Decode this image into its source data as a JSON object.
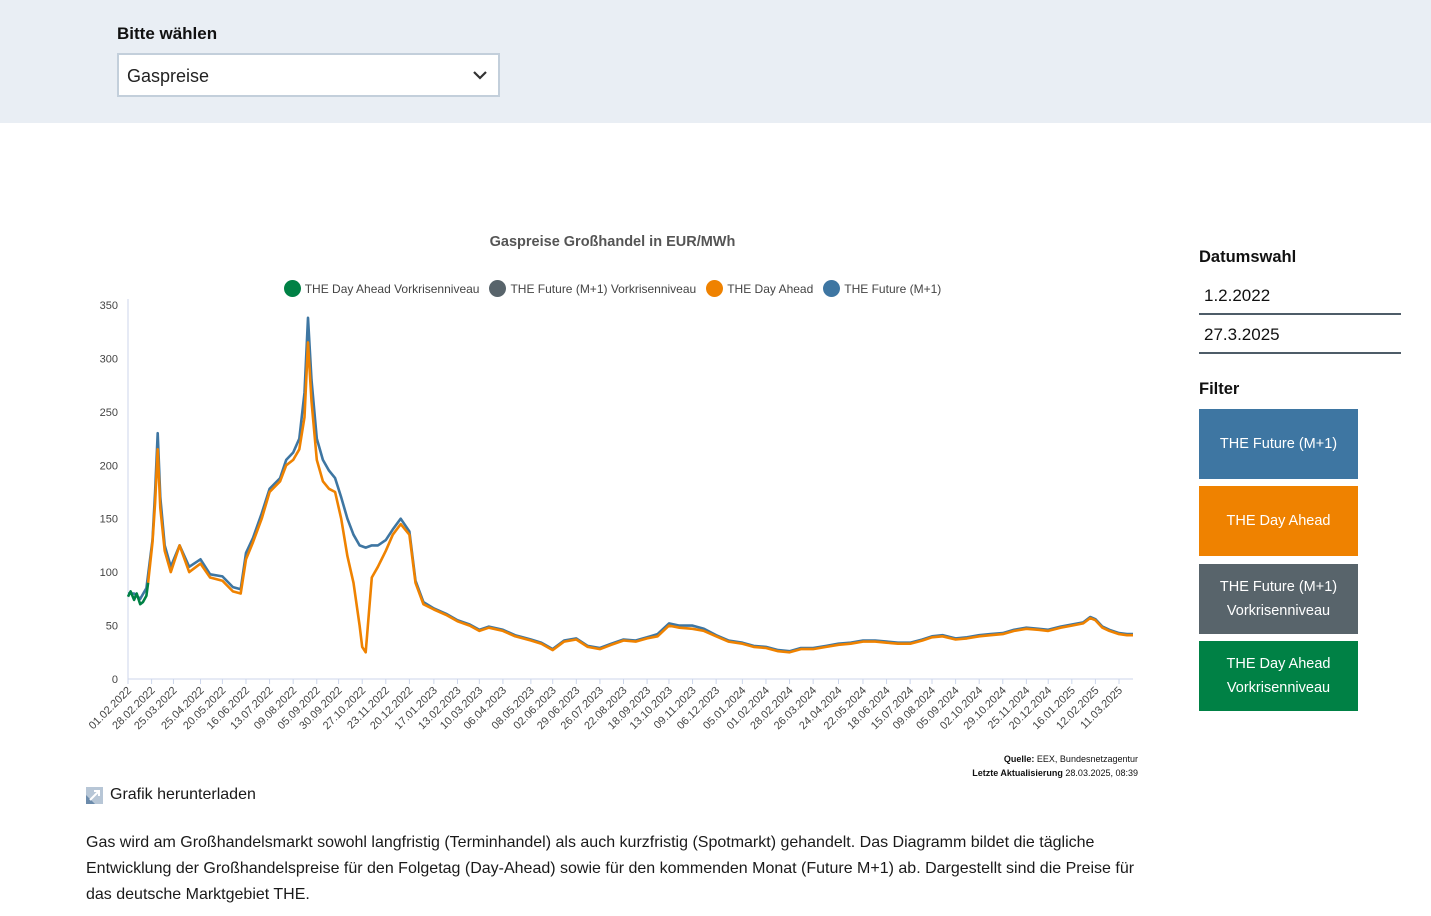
{
  "selector": {
    "label": "Bitte wählen",
    "value": "Gaspreise"
  },
  "sidebar": {
    "date_heading": "Datumswahl",
    "date_from": "1.2.2022",
    "date_to": "27.3.2025",
    "filter_heading": "Filter",
    "filters": [
      {
        "line1": "THE Future (M+1)",
        "line2": "",
        "color": "#3e76a2"
      },
      {
        "line1": "THE Day Ahead",
        "line2": "",
        "color": "#ef8200"
      },
      {
        "line1": "THE Future (M+1)",
        "line2": "Vorkrisenniveau",
        "color": "#58646b"
      },
      {
        "line1": "THE Day Ahead",
        "line2": "Vorkrisenniveau",
        "color": "#008145"
      }
    ]
  },
  "source": {
    "label": "Quelle:",
    "value": "EEX, Bundesnetzagentur",
    "updated_label": "Letzte Aktualisierung",
    "updated_value": "28.03.2025, 08:39"
  },
  "download_label": "Grafik herunterladen",
  "description": "Gas wird am Großhandelsmarkt sowohl langfristig (Terminhandel) als auch kurzfristig (Spotmarkt) gehandelt. Das Diagramm bildet die tägliche Entwicklung der Großhandelspreise für den Folgetag (Day-Ahead) sowie für den kommenden Monat (Future M+1) ab. Dargestellt sind die Preise für das deutsche Marktgebiet THE.",
  "chart_data": {
    "type": "area",
    "title": "Gaspreise Großhandel in EUR/MWh",
    "xlabel": "",
    "ylabel": "",
    "ylim": [
      0,
      350
    ],
    "yticks": [
      0,
      50,
      100,
      150,
      200,
      250,
      300,
      350
    ],
    "x_start": "01.02.2022",
    "x_end": "27.03.2025",
    "x_tick_labels": [
      "01.02.2022",
      "28.02.2022",
      "25.03.2022",
      "25.04.2022",
      "20.05.2022",
      "16.06.2022",
      "13.07.2022",
      "09.08.2022",
      "05.09.2022",
      "30.09.2022",
      "27.10.2022",
      "23.11.2022",
      "20.12.2022",
      "17.01.2023",
      "13.02.2023",
      "10.03.2023",
      "06.04.2023",
      "08.05.2023",
      "02.06.2023",
      "29.06.2023",
      "26.07.2023",
      "22.08.2023",
      "18.09.2023",
      "13.10.2023",
      "09.11.2023",
      "06.12.2023",
      "05.01.2024",
      "01.02.2024",
      "28.02.2024",
      "26.03.2024",
      "24.04.2024",
      "22.05.2024",
      "18.06.2024",
      "15.07.2024",
      "09.08.2024",
      "05.09.2024",
      "02.10.2024",
      "29.10.2024",
      "25.11.2024",
      "20.12.2024",
      "16.01.2025",
      "12.02.2025",
      "11.03.2025"
    ],
    "grid": false,
    "legend_position": "top-center",
    "series": [
      {
        "name": "THE Day Ahead Vorkrisenniveau",
        "color": "#008145",
        "points": [
          [
            "01.02.2022",
            77
          ],
          [
            "04.02.2022",
            82
          ],
          [
            "08.02.2022",
            74
          ],
          [
            "11.02.2022",
            80
          ],
          [
            "15.02.2022",
            70
          ],
          [
            "18.02.2022",
            72
          ],
          [
            "22.02.2022",
            78
          ],
          [
            "24.02.2022",
            90
          ]
        ]
      },
      {
        "name": "THE Future (M+1) Vorkrisenniveau",
        "color": "#58646b",
        "points": []
      },
      {
        "name": "THE Day Ahead",
        "color": "#ef8200",
        "points": [
          [
            "24.02.2022",
            90
          ],
          [
            "01.03.2022",
            128
          ],
          [
            "04.03.2022",
            165
          ],
          [
            "07.03.2022",
            215
          ],
          [
            "10.03.2022",
            160
          ],
          [
            "15.03.2022",
            120
          ],
          [
            "22.03.2022",
            100
          ],
          [
            "01.04.2022",
            125
          ],
          [
            "12.04.2022",
            100
          ],
          [
            "25.04.2022",
            108
          ],
          [
            "06.05.2022",
            95
          ],
          [
            "20.05.2022",
            92
          ],
          [
            "01.06.2022",
            82
          ],
          [
            "10.06.2022",
            80
          ],
          [
            "16.06.2022",
            112
          ],
          [
            "24.06.2022",
            128
          ],
          [
            "04.07.2022",
            150
          ],
          [
            "13.07.2022",
            175
          ],
          [
            "25.07.2022",
            185
          ],
          [
            "01.08.2022",
            200
          ],
          [
            "09.08.2022",
            205
          ],
          [
            "16.08.2022",
            215
          ],
          [
            "22.08.2022",
            245
          ],
          [
            "26.08.2022",
            315
          ],
          [
            "30.08.2022",
            260
          ],
          [
            "05.09.2022",
            205
          ],
          [
            "12.09.2022",
            185
          ],
          [
            "19.09.2022",
            178
          ],
          [
            "26.09.2022",
            175
          ],
          [
            "03.10.2022",
            150
          ],
          [
            "10.10.2022",
            115
          ],
          [
            "17.10.2022",
            90
          ],
          [
            "24.10.2022",
            50
          ],
          [
            "27.10.2022",
            30
          ],
          [
            "31.10.2022",
            25
          ],
          [
            "07.11.2022",
            95
          ],
          [
            "14.11.2022",
            105
          ],
          [
            "23.11.2022",
            120
          ],
          [
            "01.12.2022",
            135
          ],
          [
            "10.12.2022",
            145
          ],
          [
            "20.12.2022",
            135
          ],
          [
            "27.12.2022",
            90
          ],
          [
            "05.01.2023",
            70
          ],
          [
            "17.01.2023",
            65
          ],
          [
            "31.01.2023",
            60
          ],
          [
            "13.02.2023",
            54
          ],
          [
            "27.02.2023",
            50
          ],
          [
            "10.03.2023",
            45
          ],
          [
            "21.03.2023",
            48
          ],
          [
            "06.04.2023",
            45
          ],
          [
            "20.04.2023",
            40
          ],
          [
            "08.05.2023",
            36
          ],
          [
            "20.05.2023",
            33
          ],
          [
            "02.06.2023",
            27
          ],
          [
            "15.06.2023",
            35
          ],
          [
            "29.06.2023",
            37
          ],
          [
            "12.07.2023",
            30
          ],
          [
            "26.07.2023",
            28
          ],
          [
            "08.08.2023",
            32
          ],
          [
            "22.08.2023",
            36
          ],
          [
            "05.09.2023",
            35
          ],
          [
            "18.09.2023",
            38
          ],
          [
            "30.09.2023",
            40
          ],
          [
            "13.10.2023",
            50
          ],
          [
            "25.10.2023",
            48
          ],
          [
            "09.11.2023",
            47
          ],
          [
            "22.11.2023",
            45
          ],
          [
            "06.12.2023",
            40
          ],
          [
            "20.12.2023",
            35
          ],
          [
            "05.01.2024",
            33
          ],
          [
            "18.01.2024",
            30
          ],
          [
            "01.02.2024",
            29
          ],
          [
            "15.02.2024",
            26
          ],
          [
            "28.02.2024",
            25
          ],
          [
            "12.03.2024",
            28
          ],
          [
            "26.03.2024",
            28
          ],
          [
            "10.04.2024",
            30
          ],
          [
            "24.04.2024",
            32
          ],
          [
            "08.05.2024",
            33
          ],
          [
            "22.05.2024",
            35
          ],
          [
            "05.06.2024",
            35
          ],
          [
            "18.06.2024",
            34
          ],
          [
            "01.07.2024",
            33
          ],
          [
            "15.07.2024",
            33
          ],
          [
            "29.07.2024",
            36
          ],
          [
            "09.08.2024",
            39
          ],
          [
            "21.08.2024",
            40
          ],
          [
            "05.09.2024",
            37
          ],
          [
            "18.09.2024",
            38
          ],
          [
            "02.10.2024",
            40
          ],
          [
            "15.10.2024",
            41
          ],
          [
            "29.10.2024",
            42
          ],
          [
            "11.11.2024",
            45
          ],
          [
            "25.11.2024",
            47
          ],
          [
            "09.12.2024",
            46
          ],
          [
            "20.12.2024",
            45
          ],
          [
            "03.01.2025",
            48
          ],
          [
            "16.01.2025",
            50
          ],
          [
            "29.01.2025",
            52
          ],
          [
            "06.02.2025",
            57
          ],
          [
            "12.02.2025",
            55
          ],
          [
            "20.02.2025",
            48
          ],
          [
            "28.02.2025",
            45
          ],
          [
            "11.03.2025",
            42
          ],
          [
            "20.03.2025",
            41
          ],
          [
            "27.03.2025",
            41
          ]
        ]
      },
      {
        "name": "THE Future (M+1)",
        "color": "#3e76a2",
        "points": [
          [
            "01.02.2022",
            80
          ],
          [
            "08.02.2022",
            80
          ],
          [
            "15.02.2022",
            75
          ],
          [
            "22.02.2022",
            85
          ],
          [
            "01.03.2022",
            130
          ],
          [
            "04.03.2022",
            175
          ],
          [
            "07.03.2022",
            230
          ],
          [
            "10.03.2022",
            170
          ],
          [
            "15.03.2022",
            125
          ],
          [
            "22.03.2022",
            105
          ],
          [
            "01.04.2022",
            125
          ],
          [
            "12.04.2022",
            105
          ],
          [
            "25.04.2022",
            112
          ],
          [
            "06.05.2022",
            98
          ],
          [
            "20.05.2022",
            96
          ],
          [
            "01.06.2022",
            86
          ],
          [
            "10.06.2022",
            84
          ],
          [
            "16.06.2022",
            118
          ],
          [
            "24.06.2022",
            132
          ],
          [
            "04.07.2022",
            155
          ],
          [
            "13.07.2022",
            178
          ],
          [
            "25.07.2022",
            188
          ],
          [
            "01.08.2022",
            205
          ],
          [
            "09.08.2022",
            212
          ],
          [
            "16.08.2022",
            225
          ],
          [
            "22.08.2022",
            268
          ],
          [
            "26.08.2022",
            338
          ],
          [
            "30.08.2022",
            280
          ],
          [
            "05.09.2022",
            225
          ],
          [
            "12.09.2022",
            205
          ],
          [
            "19.09.2022",
            195
          ],
          [
            "26.09.2022",
            188
          ],
          [
            "03.10.2022",
            170
          ],
          [
            "10.10.2022",
            150
          ],
          [
            "17.10.2022",
            135
          ],
          [
            "24.10.2022",
            125
          ],
          [
            "31.10.2022",
            123
          ],
          [
            "07.11.2022",
            125
          ],
          [
            "14.11.2022",
            125
          ],
          [
            "23.11.2022",
            130
          ],
          [
            "01.12.2022",
            140
          ],
          [
            "10.12.2022",
            150
          ],
          [
            "20.12.2022",
            138
          ],
          [
            "27.12.2022",
            92
          ],
          [
            "05.01.2023",
            72
          ],
          [
            "17.01.2023",
            66
          ],
          [
            "31.01.2023",
            61
          ],
          [
            "13.02.2023",
            55
          ],
          [
            "27.02.2023",
            51
          ],
          [
            "10.03.2023",
            46
          ],
          [
            "21.03.2023",
            49
          ],
          [
            "06.04.2023",
            46
          ],
          [
            "20.04.2023",
            41
          ],
          [
            "08.05.2023",
            37
          ],
          [
            "20.05.2023",
            34
          ],
          [
            "02.06.2023",
            28
          ],
          [
            "15.06.2023",
            36
          ],
          [
            "29.06.2023",
            38
          ],
          [
            "12.07.2023",
            31
          ],
          [
            "26.07.2023",
            29
          ],
          [
            "08.08.2023",
            33
          ],
          [
            "22.08.2023",
            37
          ],
          [
            "05.09.2023",
            36
          ],
          [
            "18.09.2023",
            39
          ],
          [
            "30.09.2023",
            42
          ],
          [
            "13.10.2023",
            52
          ],
          [
            "25.10.2023",
            50
          ],
          [
            "09.11.2023",
            50
          ],
          [
            "22.11.2023",
            47
          ],
          [
            "06.12.2023",
            41
          ],
          [
            "20.12.2023",
            36
          ],
          [
            "05.01.2024",
            34
          ],
          [
            "18.01.2024",
            31
          ],
          [
            "01.02.2024",
            30
          ],
          [
            "15.02.2024",
            27
          ],
          [
            "28.02.2024",
            26
          ],
          [
            "12.03.2024",
            29
          ],
          [
            "26.03.2024",
            29
          ],
          [
            "10.04.2024",
            31
          ],
          [
            "24.04.2024",
            33
          ],
          [
            "08.05.2024",
            34
          ],
          [
            "22.05.2024",
            36
          ],
          [
            "05.06.2024",
            36
          ],
          [
            "18.06.2024",
            35
          ],
          [
            "01.07.2024",
            34
          ],
          [
            "15.07.2024",
            34
          ],
          [
            "29.07.2024",
            37
          ],
          [
            "09.08.2024",
            40
          ],
          [
            "21.08.2024",
            41
          ],
          [
            "05.09.2024",
            38
          ],
          [
            "18.09.2024",
            39
          ],
          [
            "02.10.2024",
            41
          ],
          [
            "15.10.2024",
            42
          ],
          [
            "29.10.2024",
            43
          ],
          [
            "11.11.2024",
            46
          ],
          [
            "25.11.2024",
            48
          ],
          [
            "09.12.2024",
            47
          ],
          [
            "20.12.2024",
            46
          ],
          [
            "03.01.2025",
            49
          ],
          [
            "16.01.2025",
            51
          ],
          [
            "29.01.2025",
            53
          ],
          [
            "06.02.2025",
            58
          ],
          [
            "12.02.2025",
            56
          ],
          [
            "20.02.2025",
            49
          ],
          [
            "28.02.2025",
            46
          ],
          [
            "11.03.2025",
            43
          ],
          [
            "20.03.2025",
            42
          ],
          [
            "27.03.2025",
            42
          ]
        ]
      }
    ]
  }
}
